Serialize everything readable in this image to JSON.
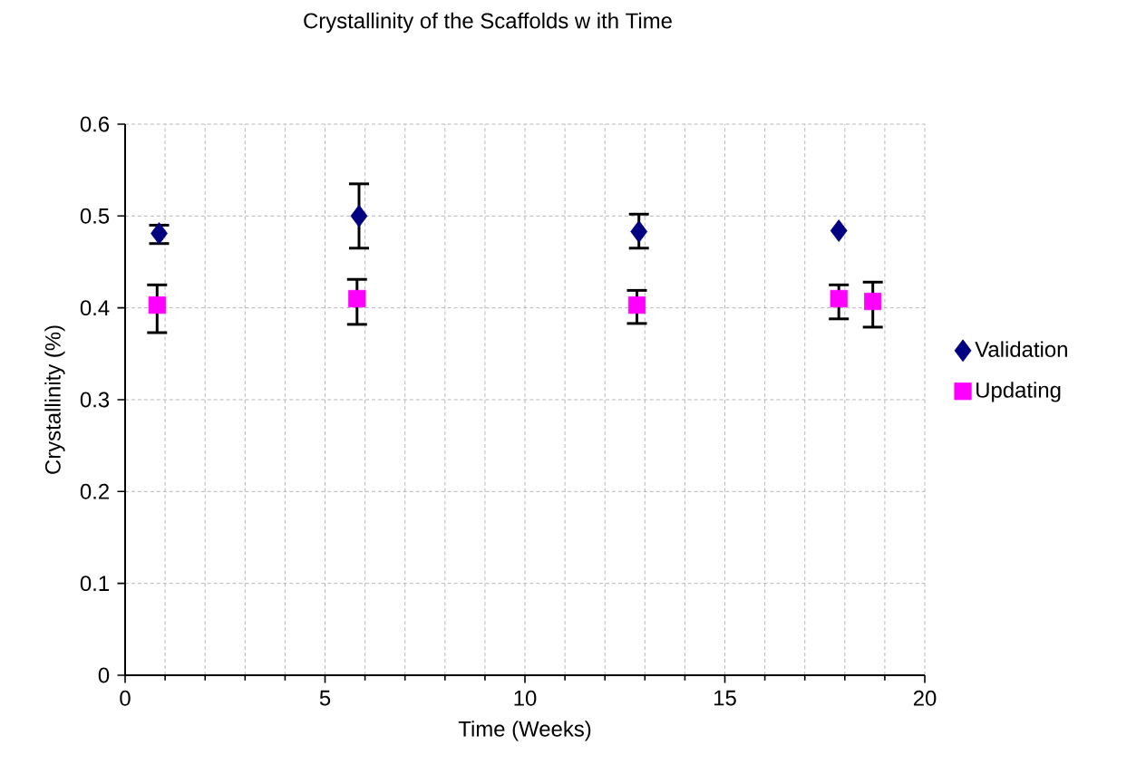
{
  "chart_data": {
    "type": "scatter",
    "title": "Crystallinity of the Scaffolds w ith Time",
    "xlabel": "Time (Weeks)",
    "ylabel": "Crystallinity (%)",
    "xlim": [
      0,
      20
    ],
    "xticks": [
      0,
      5,
      10,
      15,
      20
    ],
    "ylim": [
      0,
      0.6
    ],
    "yticks": [
      0,
      0.1,
      0.2,
      0.3,
      0.4,
      0.5,
      0.6
    ],
    "grid": true,
    "legend": "right",
    "series": [
      {
        "name": "Validation",
        "color": "#000080",
        "marker": "diamond",
        "x": [
          0.85,
          5.85,
          12.85,
          17.85
        ],
        "values": [
          0.481,
          0.5,
          0.483,
          0.484
        ],
        "errors": [
          [
            0.47,
            0.49
          ],
          [
            0.465,
            0.535
          ],
          [
            0.465,
            0.502
          ],
          null
        ]
      },
      {
        "name": "Updating",
        "color": "#ff00ff",
        "marker": "square",
        "x": [
          0.8,
          5.8,
          12.8,
          17.85,
          18.7
        ],
        "values": [
          0.403,
          0.41,
          0.403,
          0.41,
          0.407
        ],
        "errors": [
          [
            0.373,
            0.425
          ],
          [
            0.382,
            0.431
          ],
          [
            0.383,
            0.419
          ],
          [
            0.388,
            0.425
          ],
          [
            0.379,
            0.428
          ]
        ]
      }
    ]
  }
}
